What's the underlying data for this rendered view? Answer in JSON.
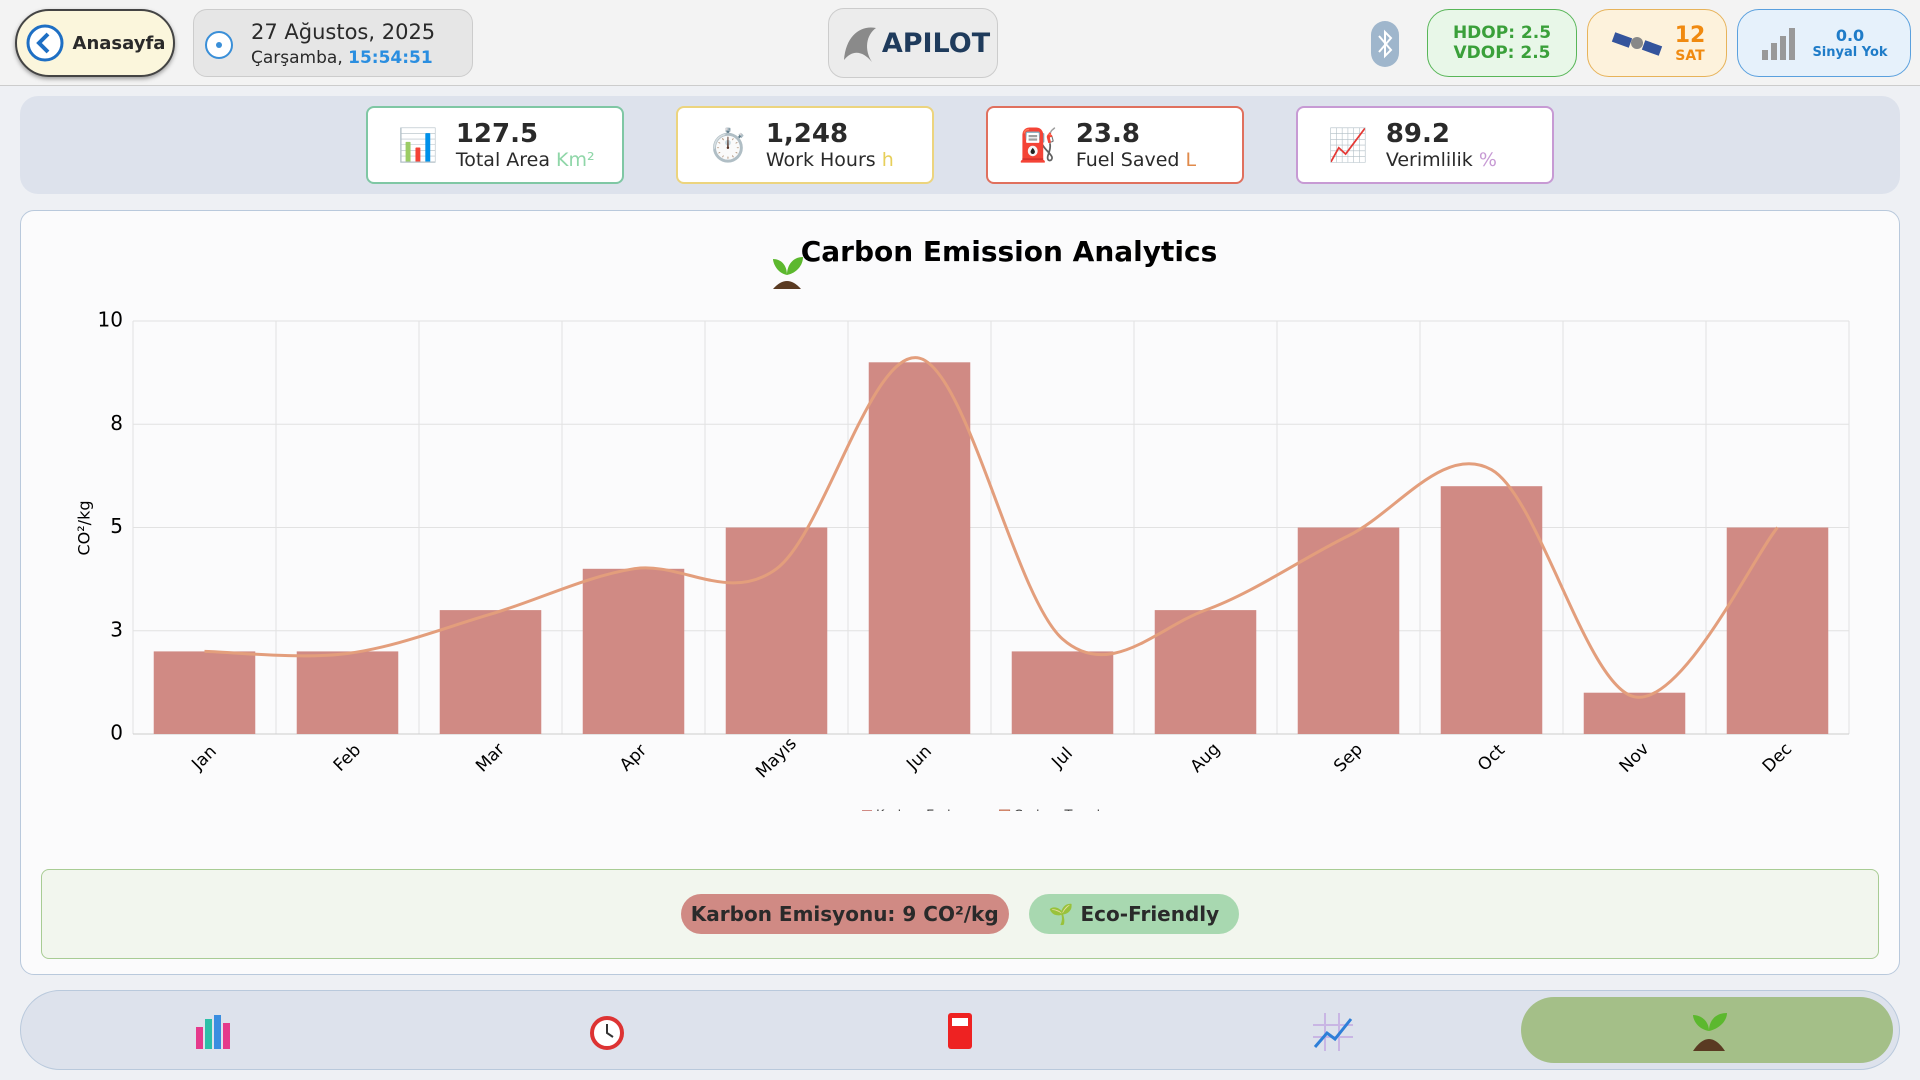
{
  "header": {
    "back_button": "Anasayfa",
    "date": "27 Ağustos, 2025",
    "day": "Çarşamba,",
    "time": "15:54:51",
    "brand": "APILOT",
    "hdop": "HDOP: 2.5",
    "vdop": "VDOP: 2.5",
    "sat_count": "12",
    "sat_label": "SAT",
    "signal_value": "0.0",
    "signal_label": "Sinyal Yok"
  },
  "stats": [
    {
      "value": "127.5",
      "label": "Total Area",
      "unit": "Km²"
    },
    {
      "value": "1,248",
      "label": "Work Hours",
      "unit": "h"
    },
    {
      "value": "23.8",
      "label": "Fuel Saved",
      "unit": "L"
    },
    {
      "value": "89.2",
      "label": "Verimlilik",
      "unit": "%"
    }
  ],
  "chart_data": {
    "type": "bar",
    "title": "Carbon Emission Analytics",
    "y_label": "CO²/kg",
    "categories": [
      "Jan",
      "Feb",
      "Mar",
      "Apr",
      "Mayıs",
      "Jun",
      "Jul",
      "Aug",
      "Sep",
      "Oct",
      "Nov",
      "Dec"
    ],
    "series": [
      {
        "name": "Karbon Emisyonu",
        "color": "#d08a84",
        "values": [
          2,
          2,
          3,
          4,
          5,
          9,
          2,
          3,
          5,
          6,
          1,
          5
        ]
      },
      {
        "name": "Carbon Trend",
        "color": "#e39e7c",
        "type": "line",
        "values": [
          2,
          1.95,
          2.9,
          4,
          4,
          9.1,
          2.3,
          3,
          4.8,
          6.4,
          0.9,
          5
        ]
      }
    ],
    "ylim": [
      0,
      10
    ],
    "yticks": [
      0,
      {
        "value": 2.5,
        "label": "3"
      },
      5,
      {
        "value": 7.5,
        "label": "8"
      },
      10
    ],
    "grid": true
  },
  "summary": {
    "emission": "Karbon Emisyonu: 9 CO²/kg",
    "eco": "Eco-Friendly"
  }
}
